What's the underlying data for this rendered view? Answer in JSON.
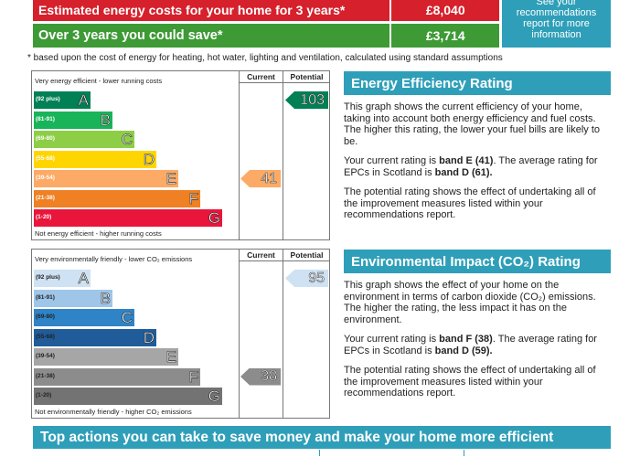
{
  "costs": {
    "estimated_label": "Estimated energy costs for your home for 3 years*",
    "estimated_value": "£8,040",
    "save_label": "Over 3 years you could save*",
    "save_value": "£3,714",
    "recommend_lines": [
      "See your",
      "recommendations",
      "report for more",
      "information"
    ],
    "footnote": "* based upon the cost of energy for heating, hot water, lighting and ventilation, calculated using standard assumptions",
    "colors": {
      "estimated": "#d6202c",
      "save": "#3d9a35",
      "accent": "#2f9fb9"
    }
  },
  "energy_chart": {
    "col_current": "Current",
    "col_potential": "Potential",
    "top_text": "Very energy efficient - lower running costs",
    "bottom_text": "Not energy efficient - higher running costs",
    "bands": [
      {
        "range": "(92 plus)",
        "letter": "A",
        "color": "#008054"
      },
      {
        "range": "(81-91)",
        "letter": "B",
        "color": "#19b459"
      },
      {
        "range": "(69-80)",
        "letter": "C",
        "color": "#8dce46"
      },
      {
        "range": "(55-68)",
        "letter": "D",
        "color": "#ffd500"
      },
      {
        "range": "(39-54)",
        "letter": "E",
        "color": "#fcaa65"
      },
      {
        "range": "(21-38)",
        "letter": "F",
        "color": "#ef8023"
      },
      {
        "range": "(1-20)",
        "letter": "G",
        "color": "#e9153b"
      }
    ],
    "current": {
      "value": "41",
      "band": "E",
      "color": "#fcaa65"
    },
    "potential": {
      "value": "103",
      "band": "A",
      "color": "#008054"
    }
  },
  "eco_chart": {
    "col_current": "Current",
    "col_potential": "Potential",
    "top_text": "Very environmentally friendly - lower CO₂ emissions",
    "bottom_text": "Not environmentally friendly - higher CO₂ emissions",
    "bands": [
      {
        "range": "(92 plus)",
        "letter": "A",
        "color": "#cfe2f3"
      },
      {
        "range": "(81-91)",
        "letter": "B",
        "color": "#9fc5e8"
      },
      {
        "range": "(69-80)",
        "letter": "C",
        "color": "#2f83c7"
      },
      {
        "range": "(55-68)",
        "letter": "D",
        "color": "#1f5c99"
      },
      {
        "range": "(39-54)",
        "letter": "E",
        "color": "#a6a6a6"
      },
      {
        "range": "(21-38)",
        "letter": "F",
        "color": "#8c8c8c"
      },
      {
        "range": "(1-20)",
        "letter": "G",
        "color": "#737373"
      }
    ],
    "current": {
      "value": "38",
      "band": "F",
      "color": "#8c8c8c"
    },
    "potential": {
      "value": "95",
      "band": "A",
      "color": "#cfe2f3"
    }
  },
  "eer": {
    "title": "Energy Efficiency Rating",
    "p1": "This graph shows the current efficiency of your home, taking into account both energy efficiency and fuel costs. The higher this rating, the lower your fuel bills are likely to be.",
    "p2_a": "Your current rating is ",
    "p2_b": "band E (41)",
    "p2_c": ". The average rating for EPCs in Scotland is ",
    "p2_d": "band D (61).",
    "p3": "The potential rating shows the effect of undertaking all of the improvement measures listed within your recommendations report."
  },
  "eir": {
    "title": "Environmental Impact (CO₂) Rating",
    "p1": "This graph shows the effect of your home on the environment in terms of carbon dioxide (CO₂) emissions. The higher the rating, the less impact it has on the environment.",
    "p2_a": "Your current rating is ",
    "p2_b": "band F (38)",
    "p2_c": ". The average rating for EPCs in Scotland is ",
    "p2_d": "band D (59).",
    "p3": "The potential rating shows the effect of undertaking all of the improvement measures listed within your recommendations report."
  },
  "bottom": {
    "banner": "Top actions you can take to save money and make your home more efficient"
  }
}
